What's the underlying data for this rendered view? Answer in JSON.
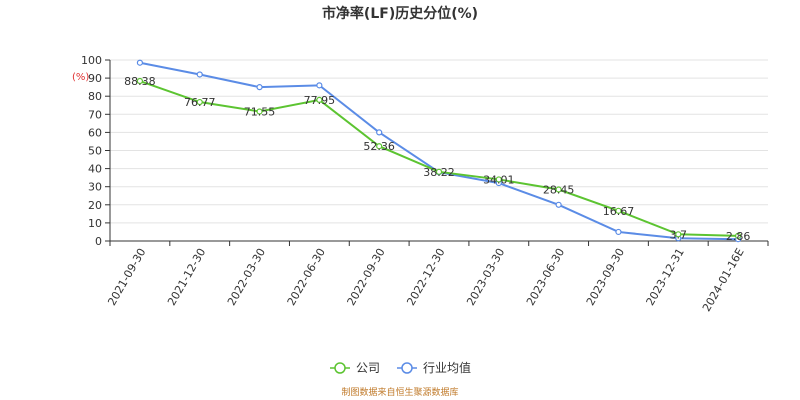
{
  "chart_data": {
    "type": "line",
    "title": "市净率(LF)历史分位(%)",
    "y_unit": "(%)",
    "categories": [
      "2021-09-30",
      "2021-12-30",
      "2022-03-30",
      "2022-06-30",
      "2022-09-30",
      "2022-12-30",
      "2023-03-30",
      "2023-06-30",
      "2023-09-30",
      "2023-12-31",
      "2024-01-16E"
    ],
    "ylim": [
      0,
      100
    ],
    "yticks": [
      0,
      10,
      20,
      30,
      40,
      50,
      60,
      70,
      80,
      90,
      100
    ],
    "grid": true,
    "legend_position": "bottom-center",
    "series": [
      {
        "name": "公司",
        "color": "#5cc431",
        "values": [
          88.38,
          76.77,
          71.55,
          77.95,
          52.36,
          38.22,
          34.01,
          28.45,
          16.67,
          3.7,
          2.86
        ],
        "labels": [
          "88.38",
          "76.77",
          "71.55",
          "77.95",
          "52.36",
          "38.22",
          "34.01",
          "28.45",
          "16.67",
          "3.7",
          "2.86"
        ]
      },
      {
        "name": "行业均值",
        "color": "#5b8ce6",
        "values": [
          98.5,
          92,
          85,
          86,
          60,
          38,
          32,
          20,
          5,
          1.5,
          1
        ]
      }
    ],
    "source": "制图数据来自恒生聚源数据库"
  }
}
